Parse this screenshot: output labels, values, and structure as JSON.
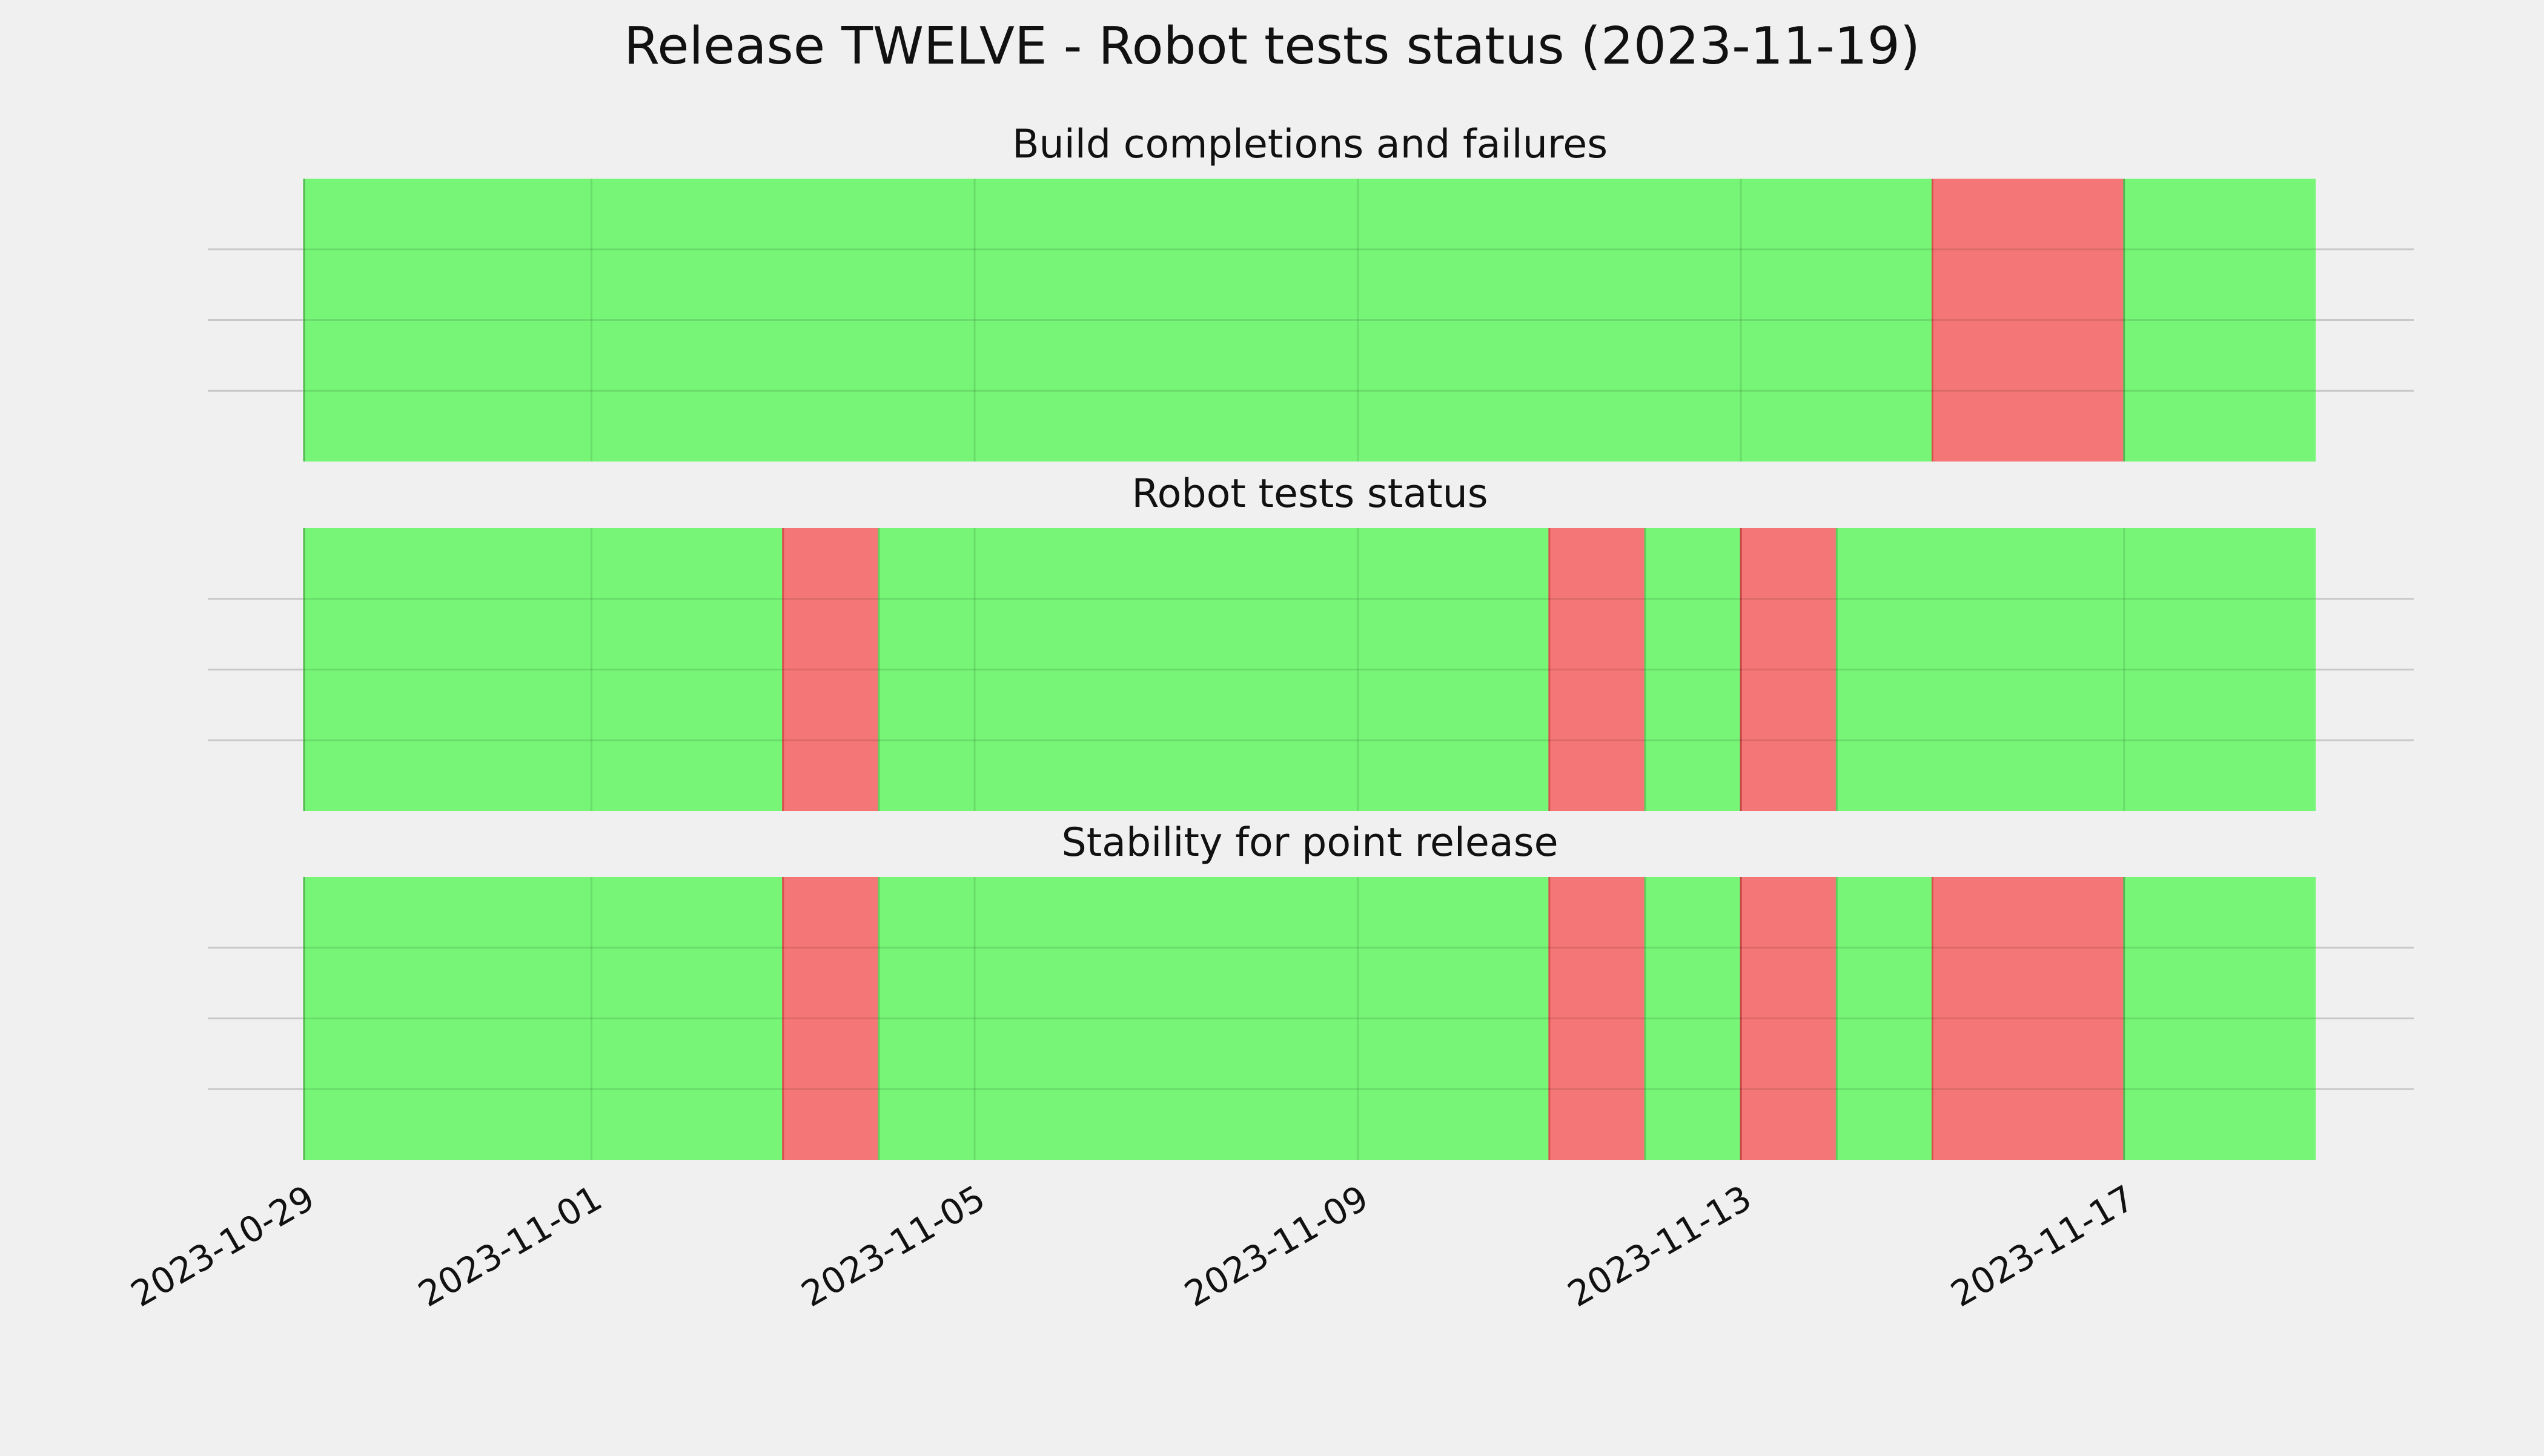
{
  "chart_data": {
    "type": "timeline",
    "title": "Release TWELVE - Robot tests status (2023-11-19)",
    "x_axis": {
      "type": "date",
      "range": [
        "2023-10-29",
        "2023-11-19"
      ],
      "ticks": [
        "2023-10-29",
        "2023-11-01",
        "2023-11-05",
        "2023-11-09",
        "2023-11-13",
        "2023-11-17"
      ],
      "tick_rotation": 30
    },
    "grid": true,
    "colors": {
      "pass": "#76f576",
      "fail": "#f57676",
      "grid": "#c8c8c8",
      "background": "#f0f0f0"
    },
    "panels": [
      {
        "title": "Build completions and failures",
        "segments": [
          {
            "start": "2023-10-29",
            "end": "2023-11-15",
            "status": "pass"
          },
          {
            "start": "2023-11-15",
            "end": "2023-11-17",
            "status": "fail"
          },
          {
            "start": "2023-11-17",
            "end": "2023-11-19",
            "status": "pass"
          }
        ]
      },
      {
        "title": "Robot tests status",
        "segments": [
          {
            "start": "2023-10-29",
            "end": "2023-11-03",
            "status": "pass"
          },
          {
            "start": "2023-11-03",
            "end": "2023-11-04",
            "status": "fail"
          },
          {
            "start": "2023-11-04",
            "end": "2023-11-11",
            "status": "pass"
          },
          {
            "start": "2023-11-11",
            "end": "2023-11-12",
            "status": "fail"
          },
          {
            "start": "2023-11-12",
            "end": "2023-11-13",
            "status": "pass"
          },
          {
            "start": "2023-11-13",
            "end": "2023-11-14",
            "status": "fail"
          },
          {
            "start": "2023-11-14",
            "end": "2023-11-19",
            "status": "pass"
          }
        ]
      },
      {
        "title": "Stability for point release",
        "segments": [
          {
            "start": "2023-10-29",
            "end": "2023-11-03",
            "status": "pass"
          },
          {
            "start": "2023-11-03",
            "end": "2023-11-04",
            "status": "fail"
          },
          {
            "start": "2023-11-04",
            "end": "2023-11-11",
            "status": "pass"
          },
          {
            "start": "2023-11-11",
            "end": "2023-11-12",
            "status": "fail"
          },
          {
            "start": "2023-11-12",
            "end": "2023-11-13",
            "status": "pass"
          },
          {
            "start": "2023-11-13",
            "end": "2023-11-14",
            "status": "fail"
          },
          {
            "start": "2023-11-14",
            "end": "2023-11-15",
            "status": "pass"
          },
          {
            "start": "2023-11-15",
            "end": "2023-11-17",
            "status": "fail"
          },
          {
            "start": "2023-11-17",
            "end": "2023-11-19",
            "status": "pass"
          }
        ]
      }
    ]
  }
}
